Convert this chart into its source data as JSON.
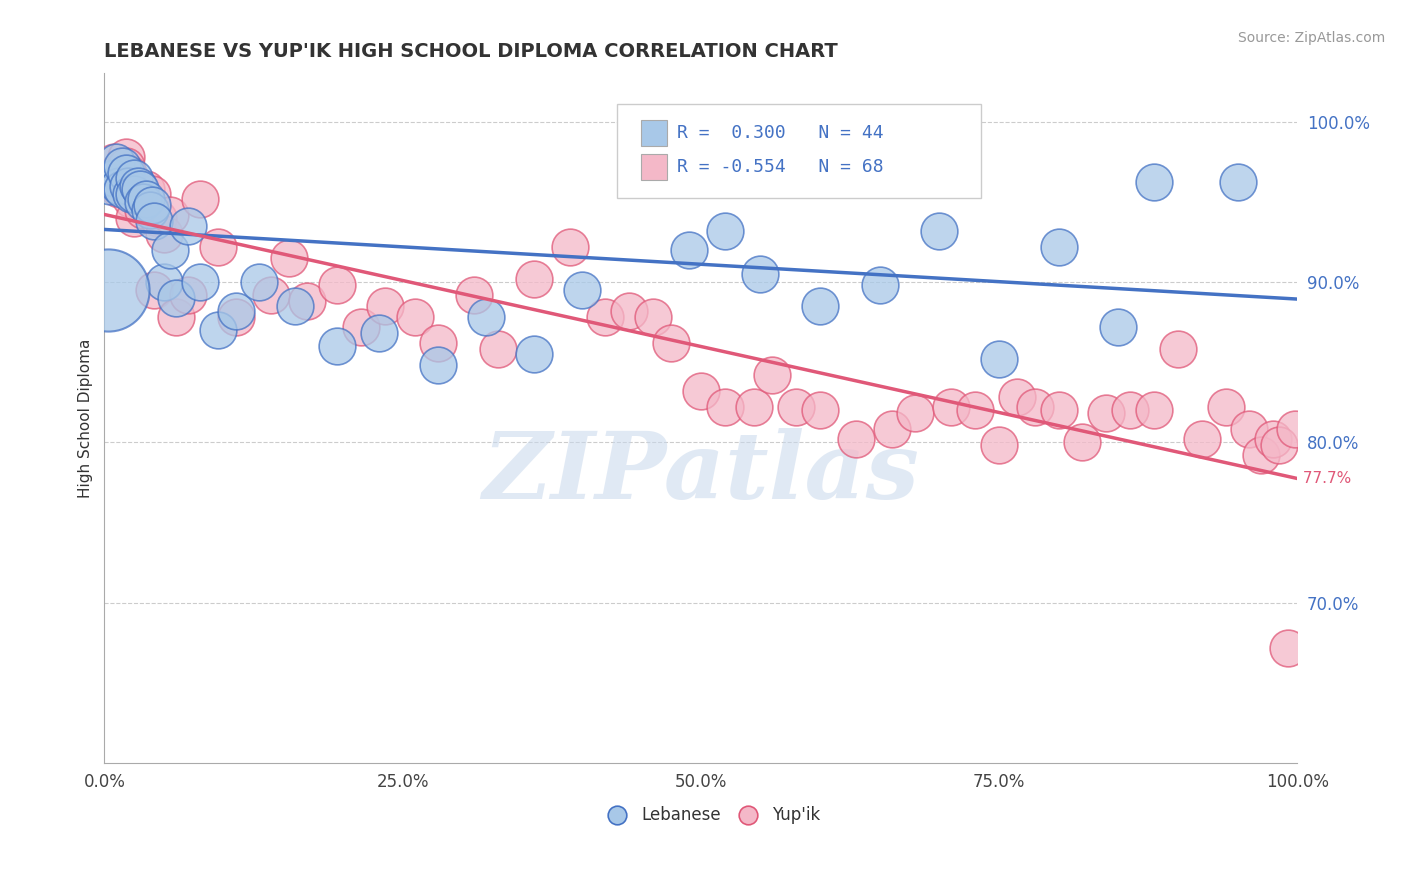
{
  "title": "LEBANESE VS YUP'IK HIGH SCHOOL DIPLOMA CORRELATION CHART",
  "source": "Source: ZipAtlas.com",
  "ylabel": "High School Diploma",
  "legend_label1": "Lebanese",
  "legend_label2": "Yup'ik",
  "r1": 0.3,
  "n1": 44,
  "r2": -0.554,
  "n2": 68,
  "color_blue": "#A8C8E8",
  "color_pink": "#F4B8C8",
  "color_blue_line": "#4472C4",
  "color_pink_line": "#E05878",
  "blue_x": [
    0.005,
    0.008,
    0.01,
    0.012,
    0.015,
    0.015,
    0.018,
    0.02,
    0.022,
    0.025,
    0.025,
    0.028,
    0.03,
    0.032,
    0.035,
    0.038,
    0.04,
    0.042,
    0.05,
    0.055,
    0.06,
    0.07,
    0.08,
    0.095,
    0.11,
    0.13,
    0.16,
    0.195,
    0.23,
    0.28,
    0.32,
    0.36,
    0.4,
    0.49,
    0.52,
    0.55,
    0.6,
    0.65,
    0.7,
    0.75,
    0.8,
    0.85,
    0.88,
    0.95
  ],
  "blue_y": [
    0.96,
    0.965,
    0.975,
    0.96,
    0.972,
    0.958,
    0.968,
    0.96,
    0.955,
    0.965,
    0.955,
    0.96,
    0.958,
    0.95,
    0.952,
    0.945,
    0.948,
    0.938,
    0.9,
    0.92,
    0.89,
    0.935,
    0.9,
    0.87,
    0.882,
    0.9,
    0.885,
    0.86,
    0.868,
    0.848,
    0.878,
    0.855,
    0.895,
    0.92,
    0.932,
    0.905,
    0.885,
    0.898,
    0.932,
    0.852,
    0.922,
    0.872,
    0.962,
    0.962
  ],
  "blue_large_x": [
    0.003
  ],
  "blue_large_y": [
    0.895
  ],
  "pink_x": [
    0.008,
    0.01,
    0.012,
    0.015,
    0.018,
    0.018,
    0.02,
    0.02,
    0.022,
    0.025,
    0.028,
    0.03,
    0.032,
    0.035,
    0.04,
    0.042,
    0.045,
    0.05,
    0.055,
    0.06,
    0.07,
    0.08,
    0.095,
    0.11,
    0.14,
    0.155,
    0.17,
    0.195,
    0.215,
    0.235,
    0.26,
    0.28,
    0.31,
    0.33,
    0.36,
    0.39,
    0.42,
    0.44,
    0.46,
    0.475,
    0.5,
    0.52,
    0.545,
    0.56,
    0.58,
    0.6,
    0.63,
    0.66,
    0.68,
    0.71,
    0.73,
    0.75,
    0.765,
    0.78,
    0.8,
    0.82,
    0.84,
    0.86,
    0.88,
    0.9,
    0.92,
    0.94,
    0.96,
    0.97,
    0.98,
    0.985,
    0.992,
    0.998
  ],
  "pink_y": [
    0.975,
    0.968,
    0.958,
    0.96,
    0.978,
    0.972,
    0.968,
    0.958,
    0.952,
    0.94,
    0.96,
    0.952,
    0.945,
    0.958,
    0.955,
    0.895,
    0.94,
    0.93,
    0.942,
    0.878,
    0.892,
    0.952,
    0.922,
    0.878,
    0.892,
    0.915,
    0.888,
    0.898,
    0.872,
    0.885,
    0.878,
    0.862,
    0.892,
    0.858,
    0.902,
    0.922,
    0.878,
    0.882,
    0.878,
    0.862,
    0.832,
    0.822,
    0.822,
    0.842,
    0.822,
    0.82,
    0.802,
    0.808,
    0.818,
    0.822,
    0.82,
    0.798,
    0.828,
    0.822,
    0.82,
    0.8,
    0.818,
    0.82,
    0.82,
    0.858,
    0.802,
    0.822,
    0.808,
    0.792,
    0.802,
    0.798,
    0.672,
    0.808
  ],
  "watermark": "ZIPatlas",
  "xlim": [
    0.0,
    1.0
  ],
  "ylim": [
    0.6,
    1.03
  ],
  "dot_size": 700,
  "large_dot_size": 3500
}
